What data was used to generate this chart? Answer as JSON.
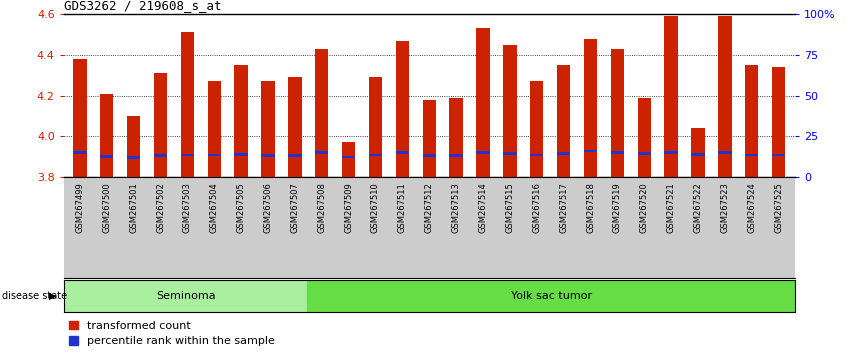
{
  "title": "GDS3262 / 219608_s_at",
  "samples": [
    "GSM267499",
    "GSM267500",
    "GSM267501",
    "GSM267502",
    "GSM267503",
    "GSM267504",
    "GSM267505",
    "GSM267506",
    "GSM267507",
    "GSM267508",
    "GSM267509",
    "GSM267510",
    "GSM267511",
    "GSM267512",
    "GSM267513",
    "GSM267514",
    "GSM267515",
    "GSM267516",
    "GSM267517",
    "GSM267518",
    "GSM267519",
    "GSM267520",
    "GSM267521",
    "GSM267522",
    "GSM267523",
    "GSM267524",
    "GSM267525"
  ],
  "red_values": [
    4.38,
    4.21,
    4.1,
    4.31,
    4.51,
    4.27,
    4.35,
    4.27,
    4.29,
    4.43,
    3.97,
    4.29,
    4.47,
    4.18,
    4.19,
    4.53,
    4.45,
    4.27,
    4.35,
    4.48,
    4.43,
    4.19,
    4.59,
    4.04,
    4.59,
    4.35,
    4.34
  ],
  "blue_centers": [
    3.92,
    3.9,
    3.895,
    3.905,
    3.908,
    3.908,
    3.912,
    3.905,
    3.905,
    3.92,
    3.898,
    3.908,
    3.922,
    3.905,
    3.905,
    3.922,
    3.915,
    3.908,
    3.915,
    3.928,
    3.92,
    3.915,
    3.922,
    3.91,
    3.922,
    3.908,
    3.908
  ],
  "seminoma_count": 9,
  "yolk_count": 18,
  "ymin": 3.8,
  "ymax": 4.6,
  "yticks_left": [
    3.8,
    4.0,
    4.2,
    4.4,
    4.6
  ],
  "yticks_right": [
    0,
    25,
    50,
    75,
    100
  ],
  "grid_lines": [
    4.0,
    4.2,
    4.4
  ],
  "bar_color_red": "#cc2200",
  "bar_color_blue": "#2233cc",
  "seminoma_color": "#aaeea0",
  "yolk_color": "#66dd44",
  "xtick_bg_color": "#cccccc",
  "plot_bg_color": "#ffffff",
  "label_red": "transformed count",
  "label_blue": "percentile rank within the sample",
  "seminoma_label": "Seminoma",
  "yolk_label": "Yolk sac tumor",
  "disease_state_label": "disease state",
  "bar_width": 0.5,
  "blue_bar_height": 0.014,
  "title_fontsize": 9,
  "tick_fontsize": 6,
  "legend_fontsize": 8,
  "disease_fontsize": 8
}
